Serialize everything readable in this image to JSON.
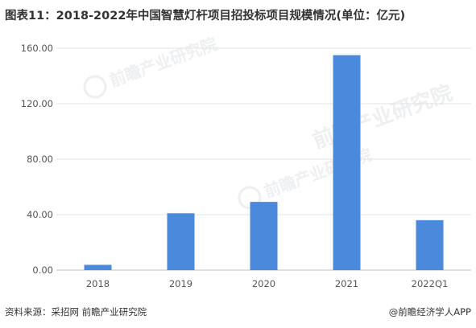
{
  "title": "图表11：2018-2022年中国智慧灯杆项目招投标项目规模情况(单位：亿元)",
  "chart_data": {
    "type": "bar",
    "categories": [
      "2018",
      "2019",
      "2020",
      "2021",
      "2022Q1"
    ],
    "values": [
      3.8,
      41.0,
      49.2,
      155.0,
      36.0
    ],
    "ylim": [
      0,
      160
    ],
    "yticks": [
      "0.00",
      "40.00",
      "80.00",
      "120.00",
      "160.00"
    ],
    "ytick_values": [
      0,
      40,
      80,
      120,
      160
    ],
    "grid": true,
    "bar_color": "#4A89DC"
  },
  "watermark": "前瞻产业研究院",
  "source": "资料来源：采招网 前瞻产业研究院",
  "brand": "@前瞻经济学人APP"
}
